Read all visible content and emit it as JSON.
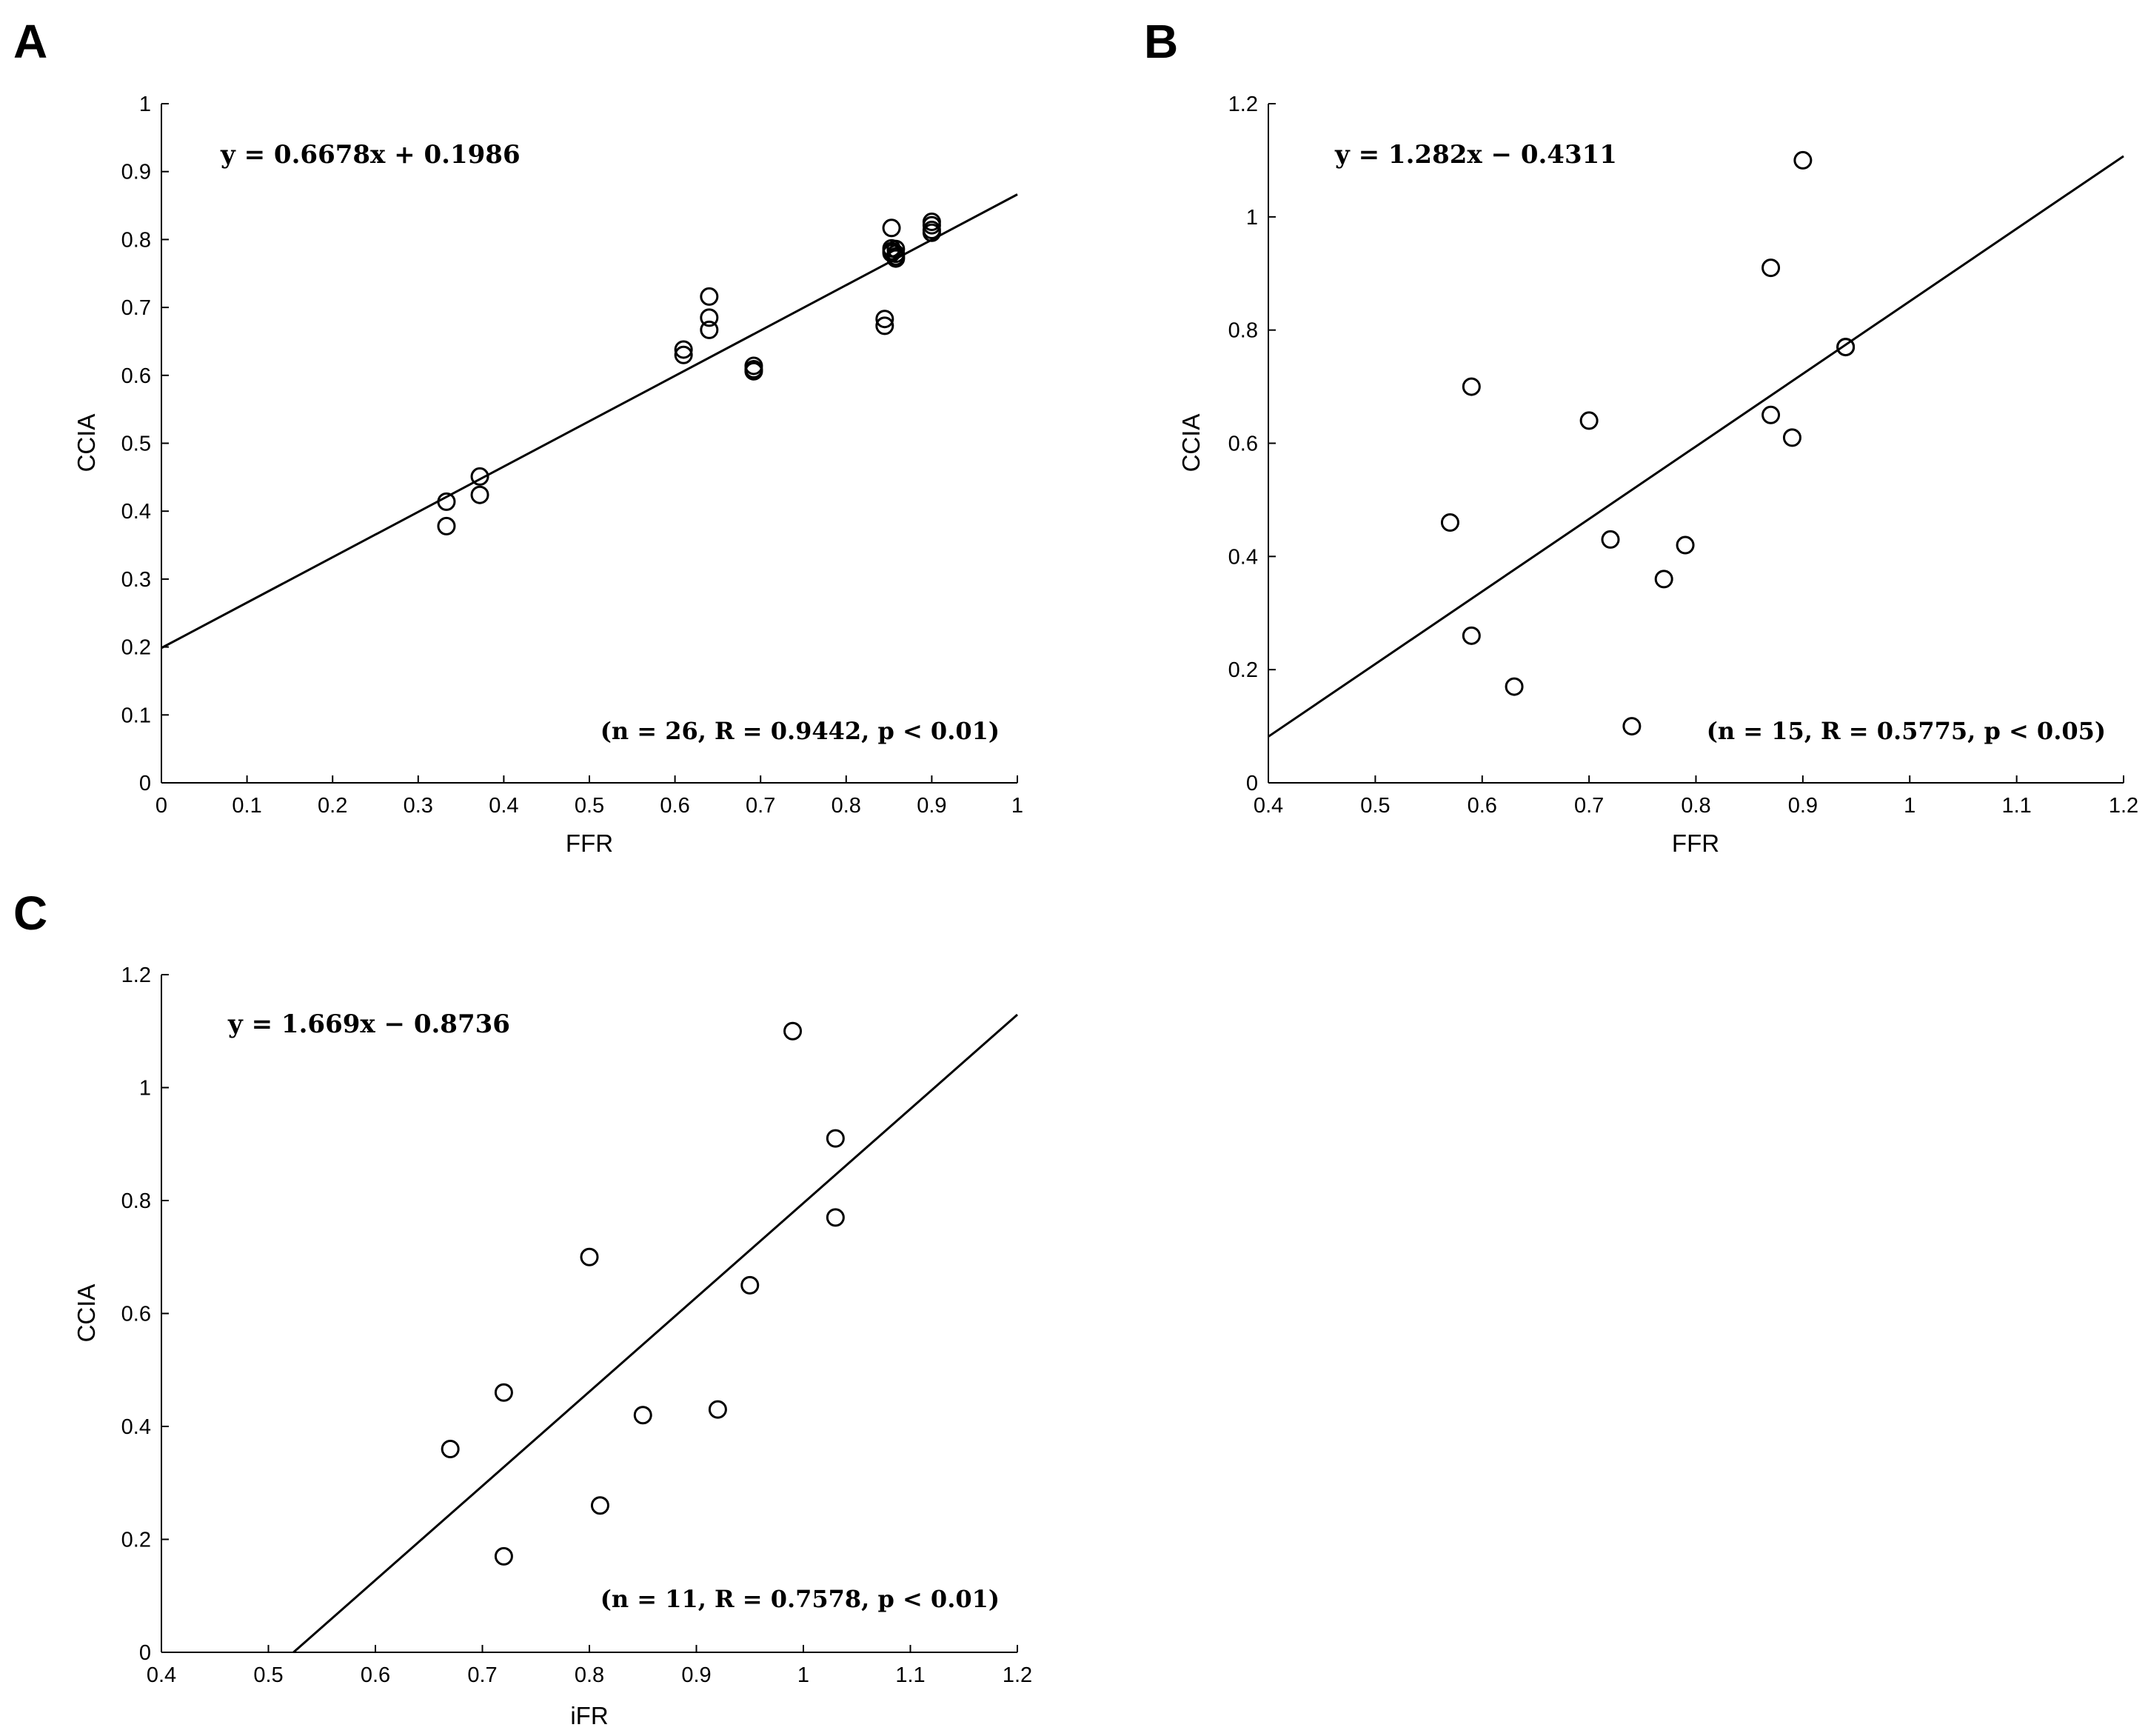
{
  "chart_data": [
    {
      "panel": "A",
      "type": "scatter",
      "xlabel": "FFR",
      "ylabel": "CCIA",
      "xlim": [
        0,
        1
      ],
      "ylim": [
        0,
        1
      ],
      "xticks": [
        "0",
        "0.1",
        "0.2",
        "0.3",
        "0.4",
        "0.5",
        "0.6",
        "0.7",
        "0.8",
        "0.9",
        "1"
      ],
      "yticks": [
        "0",
        "0.1",
        "0.2",
        "0.3",
        "0.4",
        "0.5",
        "0.6",
        "0.7",
        "0.8",
        "0.9",
        "1"
      ],
      "equation": "y = 0.6678x + 0.1986",
      "stats": "(n = 26, R = 0.9442, p < 0.01)",
      "fit": {
        "slope": 0.6678,
        "intercept": 0.1986
      },
      "points": [
        [
          0.333,
          0.414
        ],
        [
          0.333,
          0.378
        ],
        [
          0.372,
          0.451
        ],
        [
          0.372,
          0.424
        ],
        [
          0.61,
          0.638
        ],
        [
          0.61,
          0.63
        ],
        [
          0.64,
          0.716
        ],
        [
          0.64,
          0.685
        ],
        [
          0.64,
          0.667
        ],
        [
          0.692,
          0.614
        ],
        [
          0.692,
          0.609
        ],
        [
          0.692,
          0.606
        ],
        [
          0.845,
          0.683
        ],
        [
          0.845,
          0.673
        ],
        [
          0.853,
          0.817
        ],
        [
          0.853,
          0.787
        ],
        [
          0.853,
          0.783
        ],
        [
          0.858,
          0.786
        ],
        [
          0.858,
          0.779
        ],
        [
          0.858,
          0.775
        ],
        [
          0.858,
          0.772
        ],
        [
          0.9,
          0.826
        ],
        [
          0.9,
          0.821
        ],
        [
          0.9,
          0.814
        ],
        [
          0.9,
          0.81
        ],
        [
          0.853,
          0.78
        ]
      ]
    },
    {
      "panel": "B",
      "type": "scatter",
      "xlabel": "FFR",
      "ylabel": "CCIA",
      "xlim": [
        0.4,
        1.2
      ],
      "ylim": [
        0,
        1.2
      ],
      "xticks": [
        "0.4",
        "0.5",
        "0.6",
        "0.7",
        "0.8",
        "0.9",
        "1",
        "1.1",
        "1.2"
      ],
      "yticks": [
        "0",
        "0.2",
        "0.4",
        "0.6",
        "0.8",
        "1",
        "1.2"
      ],
      "equation": "y = 1.282x − 0.4311",
      "stats": "(n = 15, R = 0.5775, p < 0.05)",
      "fit": {
        "slope": 1.282,
        "intercept": -0.4311
      },
      "points": [
        [
          0.57,
          0.46
        ],
        [
          0.59,
          0.7
        ],
        [
          0.59,
          0.26
        ],
        [
          0.63,
          0.17
        ],
        [
          0.7,
          0.64
        ],
        [
          0.72,
          0.43
        ],
        [
          0.74,
          0.1
        ],
        [
          0.77,
          0.36
        ],
        [
          0.79,
          0.42
        ],
        [
          0.87,
          0.91
        ],
        [
          0.87,
          0.65
        ],
        [
          0.89,
          0.61
        ],
        [
          0.9,
          1.1
        ],
        [
          0.94,
          0.77
        ],
        [
          0.94,
          0.77
        ]
      ]
    },
    {
      "panel": "C",
      "type": "scatter",
      "xlabel": "iFR",
      "ylabel": "CCIA",
      "xlim": [
        0.4,
        1.2
      ],
      "ylim": [
        0,
        1.2
      ],
      "xticks": [
        "0.4",
        "0.5",
        "0.6",
        "0.7",
        "0.8",
        "0.9",
        "1",
        "1.1",
        "1.2"
      ],
      "yticks": [
        "0",
        "0.2",
        "0.4",
        "0.6",
        "0.8",
        "1",
        "1.2"
      ],
      "equation": "y = 1.669x − 0.8736",
      "stats": "(n = 11, R = 0.7578, p < 0.01)",
      "fit": {
        "slope": 1.669,
        "intercept": -0.8736
      },
      "points": [
        [
          0.67,
          0.36
        ],
        [
          0.72,
          0.46
        ],
        [
          0.72,
          0.17
        ],
        [
          0.8,
          0.7
        ],
        [
          0.81,
          0.26
        ],
        [
          0.85,
          0.42
        ],
        [
          0.92,
          0.43
        ],
        [
          0.95,
          0.65
        ],
        [
          0.99,
          1.1
        ],
        [
          1.03,
          0.91
        ],
        [
          1.03,
          0.77
        ]
      ]
    }
  ]
}
